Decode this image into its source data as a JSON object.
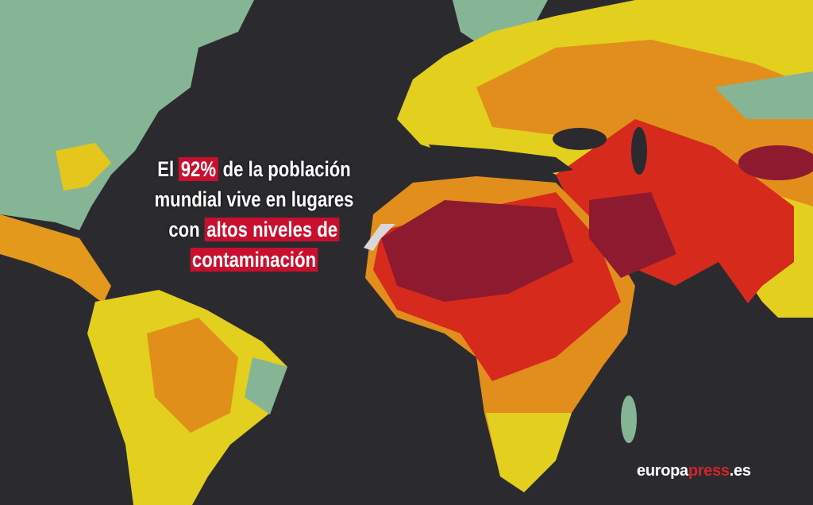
{
  "headline": {
    "lines": [
      [
        {
          "text": "El ",
          "highlight": false
        },
        {
          "text": "92%",
          "highlight": true
        },
        {
          "text": " de la población",
          "highlight": false
        }
      ],
      [
        {
          "text": "mundial vive en lugares",
          "highlight": false
        }
      ],
      [
        {
          "text": "con ",
          "highlight": false
        },
        {
          "text": "altos niveles de",
          "highlight": true
        }
      ],
      [
        {
          "text": "contaminación",
          "highlight": true
        }
      ]
    ]
  },
  "logo": {
    "name": "europa",
    "brand": "press",
    "domain": ".es"
  }
}
